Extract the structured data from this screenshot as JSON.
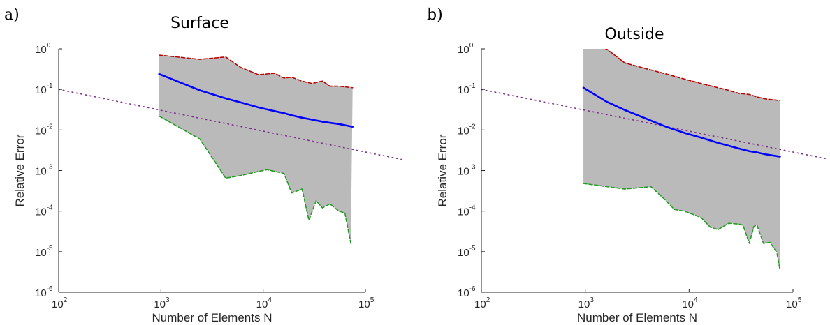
{
  "chart_data": [
    {
      "type": "line",
      "panel_label": "a)",
      "title": "Surface",
      "xlabel": "Number of Elements N",
      "ylabel": "Relative Error",
      "xscale": "log",
      "yscale": "log",
      "xlim": [
        100,
        100000
      ],
      "ylim": [
        1e-06,
        1
      ],
      "xticks": [
        {
          "base": "10",
          "exp": "2"
        },
        {
          "base": "10",
          "exp": "3"
        },
        {
          "base": "10",
          "exp": "4"
        },
        {
          "base": "10",
          "exp": "5"
        }
      ],
      "yticks": [
        {
          "base": "10",
          "exp": "-6"
        },
        {
          "base": "10",
          "exp": "-5"
        },
        {
          "base": "10",
          "exp": "-4"
        },
        {
          "base": "10",
          "exp": "-3"
        },
        {
          "base": "10",
          "exp": "-2"
        },
        {
          "base": "10",
          "exp": "-1"
        },
        {
          "base": "10",
          "exp": "0"
        }
      ],
      "grid": false,
      "colors": {
        "band": "#bababa",
        "mean": "#0000ff",
        "upper": "#bf0000",
        "lower": "#259a25",
        "reference": "#7e2f8e"
      },
      "series": [
        {
          "role": "upper",
          "style": "dashed",
          "x": [
            960,
            2400,
            4300,
            6000,
            9000,
            13000,
            16000,
            19000,
            24000,
            30000,
            38000,
            45000,
            55000,
            75000
          ],
          "y": [
            0.7,
            0.55,
            0.63,
            0.35,
            0.23,
            0.25,
            0.19,
            0.2,
            0.16,
            0.14,
            0.16,
            0.12,
            0.12,
            0.11
          ]
        },
        {
          "role": "mean",
          "style": "solid",
          "x": [
            960,
            2400,
            4300,
            6000,
            9000,
            13000,
            16000,
            19000,
            24000,
            30000,
            38000,
            45000,
            55000,
            75000
          ],
          "y": [
            0.24,
            0.095,
            0.06,
            0.048,
            0.036,
            0.029,
            0.026,
            0.023,
            0.02,
            0.018,
            0.016,
            0.015,
            0.014,
            0.012
          ]
        },
        {
          "role": "lower",
          "style": "dashed",
          "x": [
            960,
            2400,
            4300,
            6000,
            9000,
            11000,
            13000,
            16000,
            19000,
            24000,
            28000,
            33000,
            38000,
            45000,
            55000,
            63000,
            72000
          ],
          "y": [
            0.022,
            0.006,
            0.00065,
            0.00075,
            0.00095,
            0.00105,
            0.00095,
            0.00085,
            0.00028,
            0.00035,
            6e-05,
            0.00018,
            0.00012,
            0.00015,
            0.0001,
            9e-05,
            1.6e-05
          ]
        },
        {
          "role": "reference",
          "style": "dotted",
          "x": [
            100,
            200000
          ],
          "y": [
            0.1,
            0.002
          ]
        }
      ]
    },
    {
      "type": "line",
      "panel_label": "b)",
      "title": "Outside",
      "xlabel": "Number of Elements N",
      "ylabel": "Relative Error",
      "xscale": "log",
      "yscale": "log",
      "xlim": [
        100,
        100000
      ],
      "ylim": [
        1e-06,
        1
      ],
      "xticks": [
        {
          "base": "10",
          "exp": "2"
        },
        {
          "base": "10",
          "exp": "3"
        },
        {
          "base": "10",
          "exp": "4"
        },
        {
          "base": "10",
          "exp": "5"
        }
      ],
      "yticks": [
        {
          "base": "10",
          "exp": "-6"
        },
        {
          "base": "10",
          "exp": "-5"
        },
        {
          "base": "10",
          "exp": "-4"
        },
        {
          "base": "10",
          "exp": "-3"
        },
        {
          "base": "10",
          "exp": "-2"
        },
        {
          "base": "10",
          "exp": "-1"
        },
        {
          "base": "10",
          "exp": "0"
        }
      ],
      "grid": false,
      "colors": {
        "band": "#bababa",
        "mean": "#0000ff",
        "upper": "#bf0000",
        "lower": "#259a25",
        "reference": "#7e2f8e"
      },
      "series": [
        {
          "role": "upper",
          "style": "dashed",
          "x": [
            960,
            1600,
            2400,
            4300,
            6000,
            9000,
            13000,
            19000,
            24000,
            30000,
            38000,
            45000,
            55000,
            75000
          ],
          "y": [
            1.4,
            1.0,
            0.45,
            0.3,
            0.24,
            0.18,
            0.14,
            0.11,
            0.095,
            0.08,
            0.075,
            0.065,
            0.058,
            0.053
          ]
        },
        {
          "role": "mean",
          "style": "solid",
          "x": [
            960,
            1600,
            2400,
            4300,
            6000,
            9000,
            13000,
            19000,
            24000,
            30000,
            38000,
            45000,
            55000,
            75000
          ],
          "y": [
            0.11,
            0.05,
            0.031,
            0.017,
            0.012,
            0.0085,
            0.0065,
            0.0048,
            0.0041,
            0.0035,
            0.003,
            0.0028,
            0.0025,
            0.0022
          ]
        },
        {
          "role": "lower",
          "style": "dashed",
          "x": [
            960,
            2400,
            4300,
            6000,
            7200,
            9000,
            13000,
            16000,
            19000,
            24000,
            30000,
            33000,
            38000,
            42000,
            45000,
            52000,
            60000,
            70000,
            75000
          ],
          "y": [
            0.00048,
            0.00035,
            0.0004,
            0.00018,
            0.00011,
            0.0001,
            7e-05,
            4e-05,
            3.5e-05,
            5e-05,
            4.8e-05,
            4.5e-05,
            1.6e-05,
            4.2e-05,
            4.5e-05,
            1.6e-05,
            1.7e-05,
            9.5e-06,
            3.5e-06
          ]
        },
        {
          "role": "reference",
          "style": "dotted",
          "x": [
            100,
            200000
          ],
          "y": [
            0.1,
            0.002
          ]
        }
      ]
    }
  ]
}
